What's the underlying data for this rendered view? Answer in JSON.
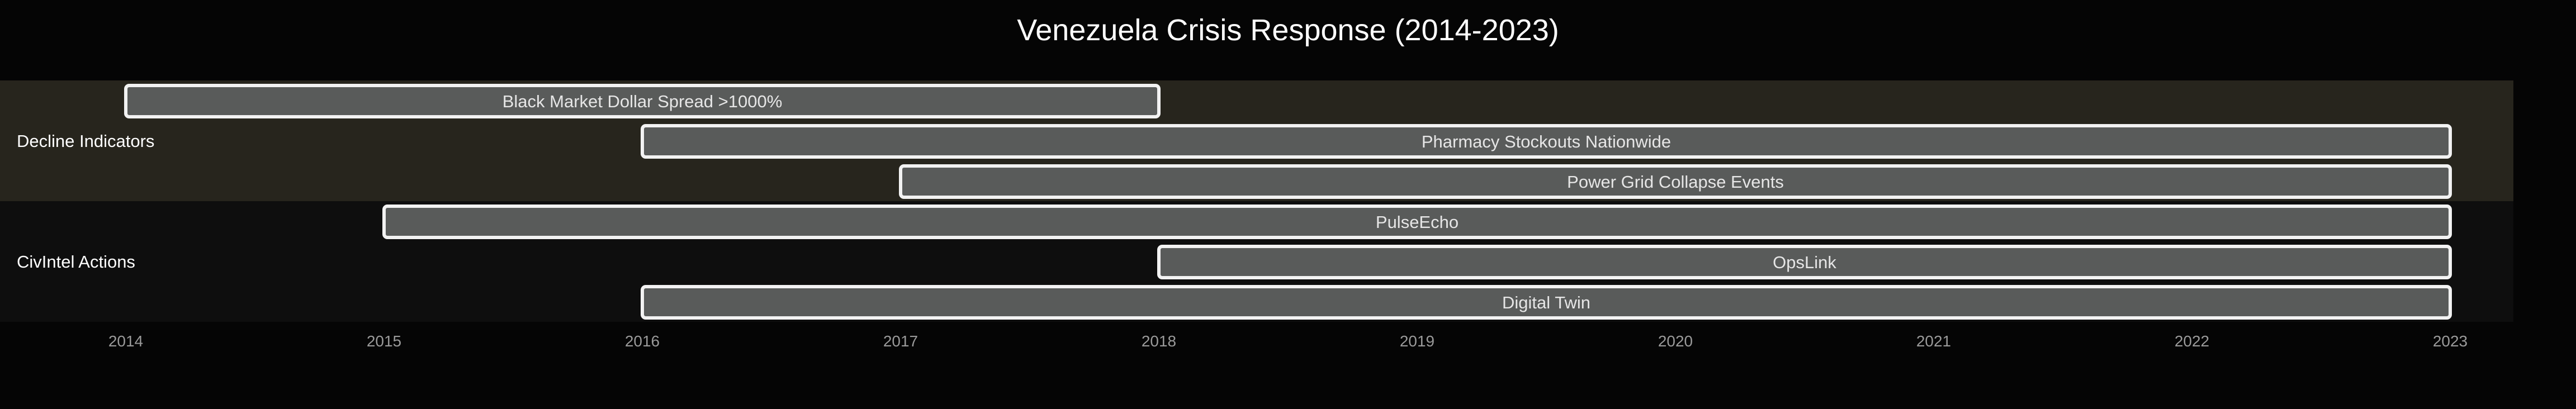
{
  "chart_data": {
    "type": "gantt",
    "title": "Venezuela Crisis Response (2014-2023)",
    "x_ticks": [
      "2014",
      "2015",
      "2016",
      "2017",
      "2018",
      "2019",
      "2020",
      "2021",
      "2022",
      "2023"
    ],
    "xlim": [
      "2014-01-01",
      "2023-03-01"
    ],
    "sections": [
      {
        "name": "Decline Indicators",
        "color": "#27251d",
        "tasks": [
          {
            "label": "Black Market Dollar Spread >1000%",
            "start": "2014-01-01",
            "end": "2018-01-01"
          },
          {
            "label": "Pharmacy Stockouts Nationwide",
            "start": "2016-01-01",
            "end": "2023-01-01"
          },
          {
            "label": "Power Grid Collapse Events",
            "start": "2017-01-01",
            "end": "2023-01-01"
          }
        ]
      },
      {
        "name": "CivIntel Actions",
        "color": "#0e0e0e",
        "tasks": [
          {
            "label": "PulseEcho",
            "start": "2015-01-01",
            "end": "2023-01-01"
          },
          {
            "label": "OpsLink",
            "start": "2018-01-01",
            "end": "2023-01-01"
          },
          {
            "label": "Digital Twin",
            "start": "2016-01-01",
            "end": "2023-01-01"
          }
        ]
      }
    ]
  }
}
